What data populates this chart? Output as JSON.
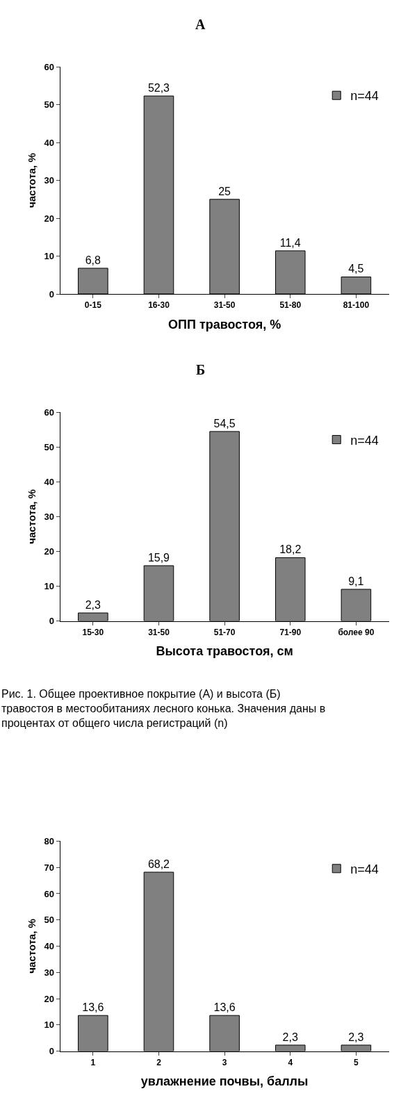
{
  "chart_data": [
    {
      "type": "bar",
      "title": "А",
      "xlabel": "ОПП травостоя, %",
      "ylabel": "частота, %",
      "categories": [
        "0-15",
        "16-30",
        "31-50",
        "51-80",
        "81-100"
      ],
      "series": [
        {
          "name": "n=44",
          "color": "#808080",
          "values": [
            6.8,
            52.3,
            25,
            11.4,
            4.5
          ]
        }
      ],
      "value_labels": [
        "6,8",
        "52,3",
        "25",
        "11,4",
        "4,5"
      ],
      "ylim": [
        0,
        60
      ],
      "yticks": [
        0,
        10,
        20,
        30,
        40,
        50,
        60
      ],
      "legend": "top right"
    },
    {
      "type": "bar",
      "title": "Б",
      "xlabel": "Высота травостоя, см",
      "ylabel": "частота, %",
      "categories": [
        "15-30",
        "31-50",
        "51-70",
        "71-90",
        "более 90"
      ],
      "series": [
        {
          "name": "n=44",
          "color": "#808080",
          "values": [
            2.3,
            15.9,
            54.5,
            18.2,
            9.1
          ]
        }
      ],
      "value_labels": [
        "2,3",
        "15,9",
        "54,5",
        "18,2",
        "9,1"
      ],
      "ylim": [
        0,
        60
      ],
      "yticks": [
        0,
        10,
        20,
        30,
        40,
        50,
        60
      ],
      "legend": "top right",
      "annotations": [
        "Рис. 1. Общее проективное покрытие (А) и высота (Б) травостоя в местообитаниях лесного конька. Значения даны в процентах от общего числа регистраций (n)"
      ]
    },
    {
      "type": "bar",
      "xlabel": "увлажнение почвы, баллы",
      "ylabel": "частота, %",
      "categories": [
        "1",
        "2",
        "3",
        "4",
        "5"
      ],
      "series": [
        {
          "name": "n=44",
          "color": "#808080",
          "values": [
            13.6,
            68.2,
            13.6,
            2.3,
            2.3
          ]
        }
      ],
      "value_labels": [
        "13,6",
        "68,2",
        "13,6",
        "2,3",
        "2,3"
      ],
      "ylim": [
        0,
        80
      ],
      "yticks": [
        0,
        10,
        20,
        30,
        40,
        50,
        60,
        70,
        80
      ],
      "legend": "top right"
    }
  ]
}
